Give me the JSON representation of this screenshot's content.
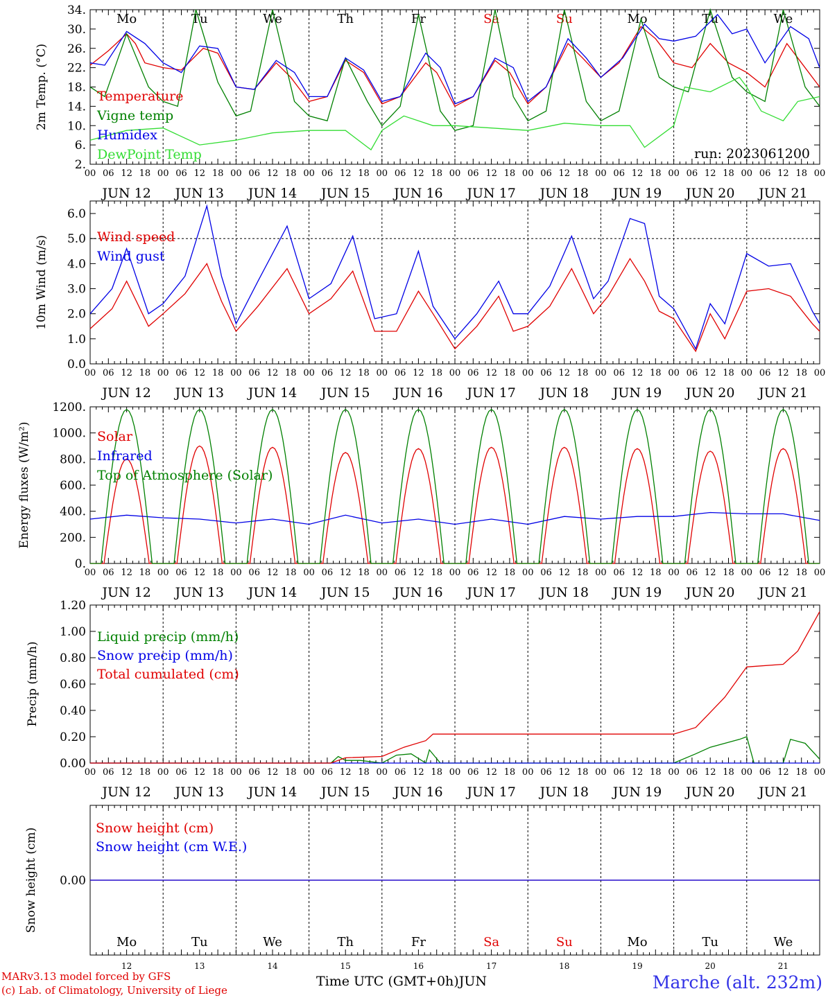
{
  "run_label": "run: 2023061200",
  "day_names": [
    "Mo",
    "Tu",
    "We",
    "Th",
    "Fr",
    "Sa",
    "Su",
    "Mo",
    "Tu",
    "We"
  ],
  "weekend_color": "#e00000",
  "date_labels": [
    "JUN 12",
    "JUN 13",
    "JUN 14",
    "JUN 15",
    "JUN 16",
    "JUN 17",
    "JUN 18",
    "JUN 19",
    "JUN 20",
    "JUN 21"
  ],
  "hour_ticks": [
    "00",
    "06",
    "12",
    "18"
  ],
  "last_hour_tick": "00",
  "bottom_day_numbers": [
    "12",
    "13",
    "14",
    "15",
    "16",
    "17",
    "18",
    "19",
    "20",
    "21"
  ],
  "footer": {
    "model_line": "MARv3.13 model forced by GFS",
    "credit_line": "(c) Lab. of Climatology, University of Liege",
    "axis_title": "Time UTC (GMT+0h)",
    "month": "JUN",
    "station": "Marche (alt. 232m)"
  },
  "chart_data": [
    {
      "type": "line",
      "ylabel": "2m Temp. (°C)",
      "ylim": [
        2,
        34
      ],
      "yticks": [
        "2.",
        "6.",
        "10.",
        "14.",
        "18.",
        "22.",
        "26.",
        "30.",
        "34."
      ],
      "x_unit": "days since JUN 12 00 UTC",
      "legend": [
        "Temperature",
        "Vigne temp",
        "Humidex",
        "DewPoint Temp"
      ],
      "series": [
        {
          "name": "Temperature",
          "color": "#e00000",
          "x": [
            0,
            0.25,
            0.5,
            0.62,
            0.75,
            1,
            1.25,
            1.55,
            1.75,
            2,
            2.25,
            2.55,
            2.75,
            3,
            3.25,
            3.5,
            3.75,
            4,
            4.25,
            4.6,
            4.75,
            5,
            5.25,
            5.55,
            5.75,
            6,
            6.25,
            6.55,
            6.75,
            7,
            7.25,
            7.55,
            7.75,
            8,
            8.25,
            8.5,
            8.75,
            9,
            9.25,
            9.55,
            9.75,
            10
          ],
          "y": [
            22.5,
            25.5,
            29,
            27,
            23,
            22,
            21.5,
            26,
            25,
            18,
            17.5,
            23,
            20,
            15,
            16,
            23.5,
            21,
            14.5,
            16,
            23,
            21,
            14,
            16,
            23.5,
            21,
            14.5,
            18,
            27,
            24,
            20,
            23,
            30.5,
            28,
            23,
            22,
            27,
            23,
            21,
            18,
            27,
            23,
            18
          ]
        },
        {
          "name": "Vigne temp",
          "color": "#008000",
          "x": [
            0,
            0.2,
            0.5,
            0.8,
            1,
            1.2,
            1.45,
            1.75,
            2,
            2.2,
            2.5,
            2.8,
            3,
            3.25,
            3.5,
            3.8,
            4,
            4.25,
            4.5,
            4.8,
            5,
            5.25,
            5.55,
            5.8,
            6,
            6.25,
            6.5,
            6.8,
            7,
            7.25,
            7.55,
            7.8,
            8,
            8.2,
            8.5,
            8.8,
            9,
            9.25,
            9.5,
            9.8,
            10
          ],
          "y": [
            18,
            16,
            29,
            18,
            15,
            14,
            34,
            19,
            12,
            13,
            34,
            15,
            12,
            11,
            24,
            15,
            10,
            14,
            33,
            13,
            9,
            10,
            34,
            16,
            11,
            13,
            34,
            15,
            11,
            13,
            32,
            20,
            18,
            17,
            34,
            20,
            17,
            15,
            34,
            18,
            14
          ]
        },
        {
          "name": "Humidex",
          "color": "#0000e6",
          "x": [
            0,
            0.2,
            0.5,
            0.75,
            1,
            1.25,
            1.5,
            1.75,
            2,
            2.25,
            2.55,
            2.8,
            3,
            3.25,
            3.5,
            3.75,
            4,
            4.25,
            4.6,
            4.8,
            5,
            5.25,
            5.55,
            5.8,
            6,
            6.25,
            6.55,
            6.8,
            7,
            7.3,
            7.6,
            7.8,
            8,
            8.3,
            8.6,
            8.8,
            9,
            9.25,
            9.6,
            9.85,
            10
          ],
          "y": [
            23,
            22.5,
            29.5,
            27,
            23,
            21,
            26.5,
            26,
            18,
            17.5,
            23.5,
            21,
            16,
            16,
            24,
            21.5,
            15,
            16,
            25,
            22,
            14.5,
            16,
            24,
            22,
            15,
            18,
            28,
            24,
            20,
            24,
            31,
            28,
            27.5,
            28.5,
            33,
            29,
            30,
            23,
            30.5,
            28,
            22
          ]
        },
        {
          "name": "DewPoint Temp",
          "color": "#33dd33",
          "x": [
            0,
            0.5,
            1,
            1.5,
            2,
            2.5,
            3,
            3.5,
            3.85,
            4,
            4.3,
            4.7,
            5,
            5.5,
            6,
            6.5,
            7,
            7.4,
            7.6,
            8,
            8.15,
            8.5,
            8.9,
            9,
            9.2,
            9.5,
            9.7,
            10
          ],
          "y": [
            7,
            9,
            9.5,
            6,
            7,
            8.5,
            9,
            9,
            5,
            9,
            12,
            10,
            10,
            9.5,
            9,
            10.5,
            10,
            10,
            5.5,
            10,
            18,
            17,
            20,
            18,
            13,
            11,
            15,
            16
          ]
        }
      ]
    },
    {
      "type": "line",
      "ylabel": "10m Wind (m/s)",
      "ylim": [
        0,
        6.5
      ],
      "yticks": [
        "0.0",
        "1.0",
        "2.0",
        "3.0",
        "4.0",
        "5.0",
        "6.0"
      ],
      "legend": [
        "Wind speed",
        "Wind gust"
      ],
      "series": [
        {
          "name": "Wind speed",
          "color": "#e00000",
          "x": [
            0,
            0.3,
            0.5,
            0.8,
            1,
            1.3,
            1.6,
            1.8,
            2,
            2.3,
            2.7,
            3,
            3.3,
            3.6,
            3.9,
            4.2,
            4.5,
            4.7,
            5,
            5.3,
            5.6,
            5.8,
            6,
            6.3,
            6.6,
            6.9,
            7.1,
            7.4,
            7.6,
            7.8,
            8,
            8.3,
            8.5,
            8.7,
            9,
            9.3,
            9.6,
            9.9,
            10
          ],
          "y": [
            1.4,
            2.2,
            3.3,
            1.5,
            2.0,
            2.8,
            4.0,
            2.5,
            1.3,
            2.3,
            3.8,
            2.0,
            2.6,
            3.7,
            1.3,
            1.3,
            2.9,
            2.0,
            0.6,
            1.5,
            2.7,
            1.3,
            1.5,
            2.3,
            3.8,
            2.0,
            2.7,
            4.2,
            3.3,
            2.1,
            1.8,
            0.5,
            2.0,
            1.0,
            2.9,
            3.0,
            2.7,
            1.6,
            1.3
          ]
        },
        {
          "name": "Wind gust",
          "color": "#0000e6",
          "x": [
            0,
            0.3,
            0.5,
            0.8,
            1,
            1.3,
            1.6,
            1.8,
            2,
            2.3,
            2.7,
            3,
            3.3,
            3.6,
            3.9,
            4.2,
            4.5,
            4.7,
            5,
            5.3,
            5.6,
            5.8,
            6,
            6.3,
            6.6,
            6.9,
            7.1,
            7.4,
            7.6,
            7.8,
            8,
            8.3,
            8.5,
            8.7,
            9,
            9.3,
            9.6,
            9.9,
            10
          ],
          "y": [
            2.0,
            3.0,
            4.6,
            2.0,
            2.4,
            3.5,
            6.3,
            3.5,
            1.6,
            3.3,
            5.5,
            2.6,
            3.2,
            5.1,
            1.8,
            2.0,
            4.5,
            2.3,
            1.0,
            2.0,
            3.3,
            2.0,
            2.0,
            3.1,
            5.1,
            2.6,
            3.3,
            5.8,
            5.6,
            2.7,
            2.2,
            0.6,
            2.4,
            1.6,
            4.4,
            3.9,
            4.0,
            2.1,
            1.6
          ]
        }
      ]
    },
    {
      "type": "line",
      "ylabel": "Energy fluxes (W/m²)",
      "ylim": [
        0,
        1200
      ],
      "yticks": [
        "0.",
        "200.",
        "400.",
        "600.",
        "800.",
        "1000.",
        "1200."
      ],
      "legend": [
        "Solar",
        "Infrared",
        "Top of Atmosphere (Solar)"
      ],
      "series": [
        {
          "name": "Solar",
          "color": "#e00000",
          "daily_peak": [
            800,
            900,
            890,
            850,
            880,
            890,
            890,
            880,
            860,
            880
          ]
        },
        {
          "name": "Infrared",
          "color": "#0000e6",
          "x": [
            0,
            0.5,
            1,
            1.5,
            2,
            2.5,
            3,
            3.5,
            4,
            4.5,
            5,
            5.5,
            6,
            6.5,
            7,
            7.5,
            8,
            8.5,
            9,
            9.5,
            10
          ],
          "y": [
            340,
            370,
            350,
            340,
            310,
            340,
            300,
            370,
            310,
            340,
            300,
            340,
            300,
            360,
            340,
            360,
            360,
            390,
            380,
            380,
            330
          ]
        },
        {
          "name": "Top of Atmosphere (Solar)",
          "color": "#008000",
          "daily_peak": [
            1180,
            1180,
            1180,
            1180,
            1180,
            1180,
            1180,
            1180,
            1180,
            1180
          ]
        }
      ]
    },
    {
      "type": "line",
      "ylabel": "Precip (mm/h)",
      "ylim": [
        0,
        1.2
      ],
      "yticks": [
        "0.00",
        "0.20",
        "0.40",
        "0.60",
        "0.80",
        "1.00",
        "1.20"
      ],
      "legend": [
        "Liquid precip (mm/h)",
        "Snow precip (mm/h)",
        "Total cumulated (cm)"
      ],
      "series": [
        {
          "name": "Liquid precip (mm/h)",
          "color": "#008000",
          "x": [
            0,
            3.3,
            3.4,
            3.5,
            3.7,
            4,
            4.2,
            4.4,
            4.6,
            4.65,
            4.8,
            8,
            8.3,
            8.5,
            8.7,
            8.9,
            9,
            9.1,
            9.5,
            9.6,
            9.8,
            10
          ],
          "y": [
            0,
            0,
            0.05,
            0.02,
            0.02,
            0,
            0.06,
            0.07,
            0,
            0.1,
            0,
            0,
            0.07,
            0.12,
            0.15,
            0.18,
            0.2,
            0,
            0,
            0.18,
            0.15,
            0.03
          ]
        },
        {
          "name": "Snow precip (mm/h)",
          "color": "#0000e6",
          "x": [
            0,
            10
          ],
          "y": [
            0,
            0
          ]
        },
        {
          "name": "Total cumulated (cm)",
          "color": "#e00000",
          "x": [
            0,
            3.3,
            3.5,
            4,
            4.3,
            4.6,
            4.7,
            8,
            8.3,
            8.7,
            9,
            9.5,
            9.7,
            10
          ],
          "y": [
            0,
            0,
            0.04,
            0.05,
            0.12,
            0.17,
            0.22,
            0.22,
            0.27,
            0.5,
            0.73,
            0.75,
            0.85,
            1.15
          ]
        }
      ]
    },
    {
      "type": "line",
      "ylabel": "Snow height (cm)",
      "ylim": [
        -1,
        1
      ],
      "yticks": [
        "0.00"
      ],
      "legend": [
        "Snow height (cm)",
        "Snow height (cm W.E.)"
      ],
      "series": [
        {
          "name": "Snow height (cm)",
          "color": "#e00000",
          "x": [
            0,
            10
          ],
          "y": [
            0,
            0
          ]
        },
        {
          "name": "Snow height (cm W.E.)",
          "color": "#0000e6",
          "x": [
            0,
            10
          ],
          "y": [
            0,
            0
          ]
        }
      ]
    }
  ]
}
